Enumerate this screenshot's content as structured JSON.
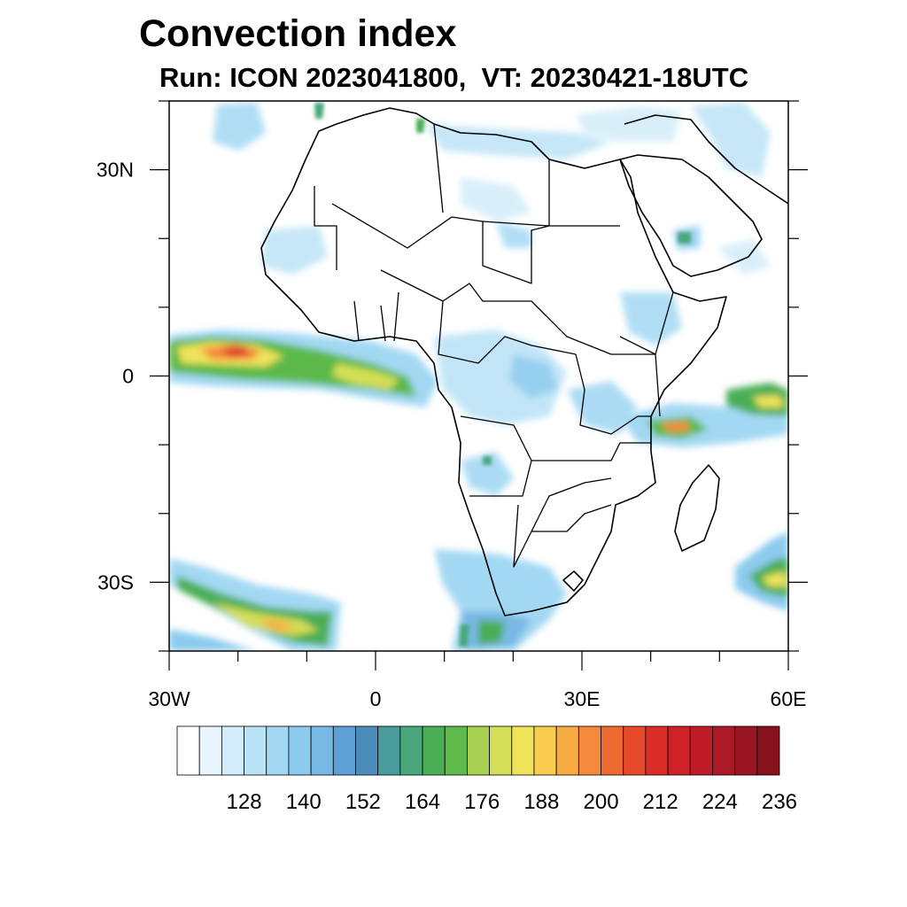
{
  "title": "Convection index",
  "subtitle": "Run: ICON 2023041800,  VT: 20230421-18UTC",
  "map": {
    "lon_range": [
      -30,
      60
    ],
    "lat_range": [
      -40,
      40
    ],
    "x_ticks": [
      {
        "value": -30,
        "label": "30W"
      },
      {
        "value": 0,
        "label": "0"
      },
      {
        "value": 30,
        "label": "30E"
      },
      {
        "value": 60,
        "label": "60E"
      }
    ],
    "y_ticks": [
      {
        "value": 30,
        "label": "30N"
      },
      {
        "value": 0,
        "label": "0"
      },
      {
        "value": -30,
        "label": "30S"
      }
    ]
  },
  "colorbar": {
    "colors": [
      "#ffffff",
      "#e8f5fc",
      "#d2ecf9",
      "#bbe3f6",
      "#a3d8f3",
      "#8ccbee",
      "#78b8e4",
      "#5d9fd4",
      "#4a8dbb",
      "#4a9b9b",
      "#4aa77b",
      "#4aae55",
      "#5cb94a",
      "#a7d14f",
      "#d4de56",
      "#efe35a",
      "#f8cc4e",
      "#f7ab43",
      "#f4893a",
      "#ee6a30",
      "#e64a2a",
      "#dc2e28",
      "#cf2127",
      "#bf1b28",
      "#ad1826",
      "#991522",
      "#85121d"
    ],
    "labels": [
      "128",
      "140",
      "152",
      "164",
      "176",
      "188",
      "200",
      "212",
      "224",
      "236"
    ]
  }
}
